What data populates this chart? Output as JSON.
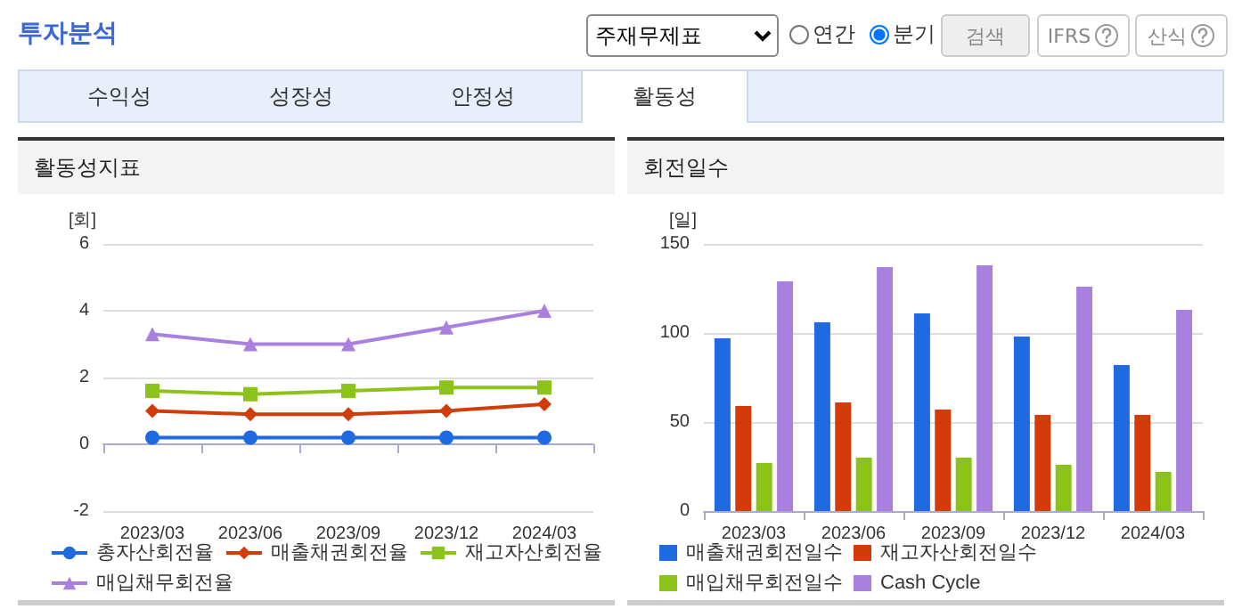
{
  "chart_data": [
    {
      "type": "other",
      "title": "투자분석",
      "annotations": [
        "주재무제표",
        "연간",
        "분기",
        "검색",
        "IFRS",
        "산식",
        "수익성",
        "성장성",
        "안정성",
        "활동성"
      ]
    },
    {
      "type": "line",
      "title": "활동성지표",
      "ylabel": "[회]",
      "categories": [
        "2023/03",
        "2023/06",
        "2023/09",
        "2023/12",
        "2024/03"
      ],
      "ylim": [
        -2,
        6
      ],
      "yticks": [
        -2,
        0,
        2,
        4,
        6
      ],
      "grid": "y",
      "legend": "bottom",
      "line_style": "solid",
      "series": [
        {
          "name": "총자산회전율",
          "color": "#1f6ae0",
          "marker": "circle",
          "values": [
            0.2,
            0.2,
            0.2,
            0.2,
            0.2
          ]
        },
        {
          "name": "매출채권회전율",
          "color": "#d23c08",
          "marker": "diamond",
          "values": [
            1.0,
            0.9,
            0.9,
            1.0,
            1.2
          ]
        },
        {
          "name": "재고자산회전율",
          "color": "#8cc31a",
          "marker": "square",
          "values": [
            1.6,
            1.5,
            1.6,
            1.7,
            1.7
          ]
        },
        {
          "name": "매입채무회전율",
          "color": "#a980e0",
          "marker": "triangle",
          "values": [
            3.3,
            3.0,
            3.0,
            3.5,
            4.0
          ]
        }
      ]
    },
    {
      "type": "bar",
      "title": "회전일수",
      "ylabel": "[일]",
      "categories": [
        "2023/03",
        "2023/06",
        "2023/09",
        "2023/12",
        "2024/03"
      ],
      "ylim": [
        0,
        150
      ],
      "yticks": [
        0,
        50,
        100,
        150
      ],
      "grid": "y",
      "legend": "bottom",
      "series": [
        {
          "name": "매출채권회전일수",
          "color": "#1f6ae0",
          "values": [
            97,
            106,
            111,
            98,
            82
          ]
        },
        {
          "name": "재고자산회전일수",
          "color": "#d23c08",
          "values": [
            59,
            61,
            57,
            54,
            54
          ]
        },
        {
          "name": "매입채무회전일수",
          "color": "#8cc31a",
          "values": [
            27,
            30,
            30,
            26,
            22
          ]
        },
        {
          "name": "Cash Cycle",
          "color": "#a980e0",
          "values": [
            129,
            137,
            138,
            126,
            113
          ]
        }
      ]
    }
  ]
}
